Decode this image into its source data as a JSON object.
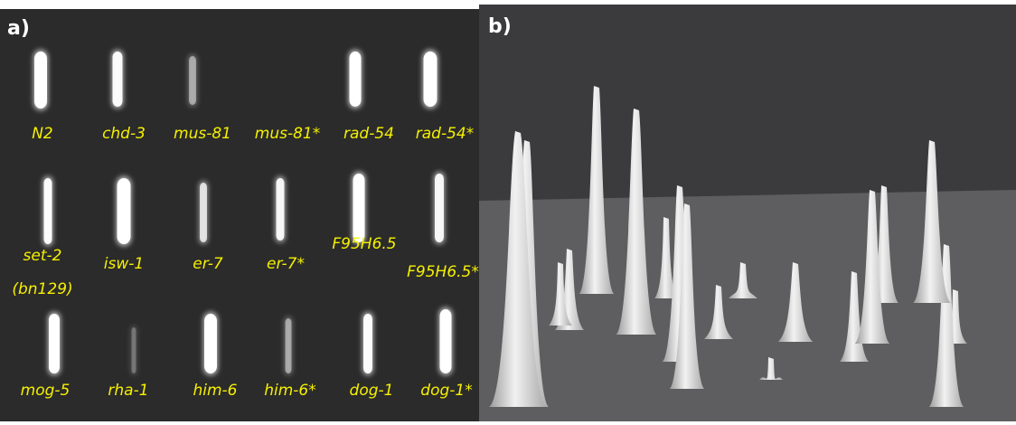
{
  "panel_a": {
    "label": "a)",
    "rows": [
      [
        "N2",
        "chd-3",
        "mus-81",
        "mus-81*",
        "rad-54",
        "rad-54*"
      ],
      [
        [
          "set-2",
          "(bn129)"
        ],
        "isw-1",
        "er-7",
        "er-7*",
        "F95H6.5",
        "F95H6.5*"
      ],
      [
        "mog-5",
        "rha-1",
        "him-6",
        "him-6*",
        "dog-1",
        "dog-1*"
      ]
    ]
  },
  "panel_b": {
    "label": "b)"
  }
}
